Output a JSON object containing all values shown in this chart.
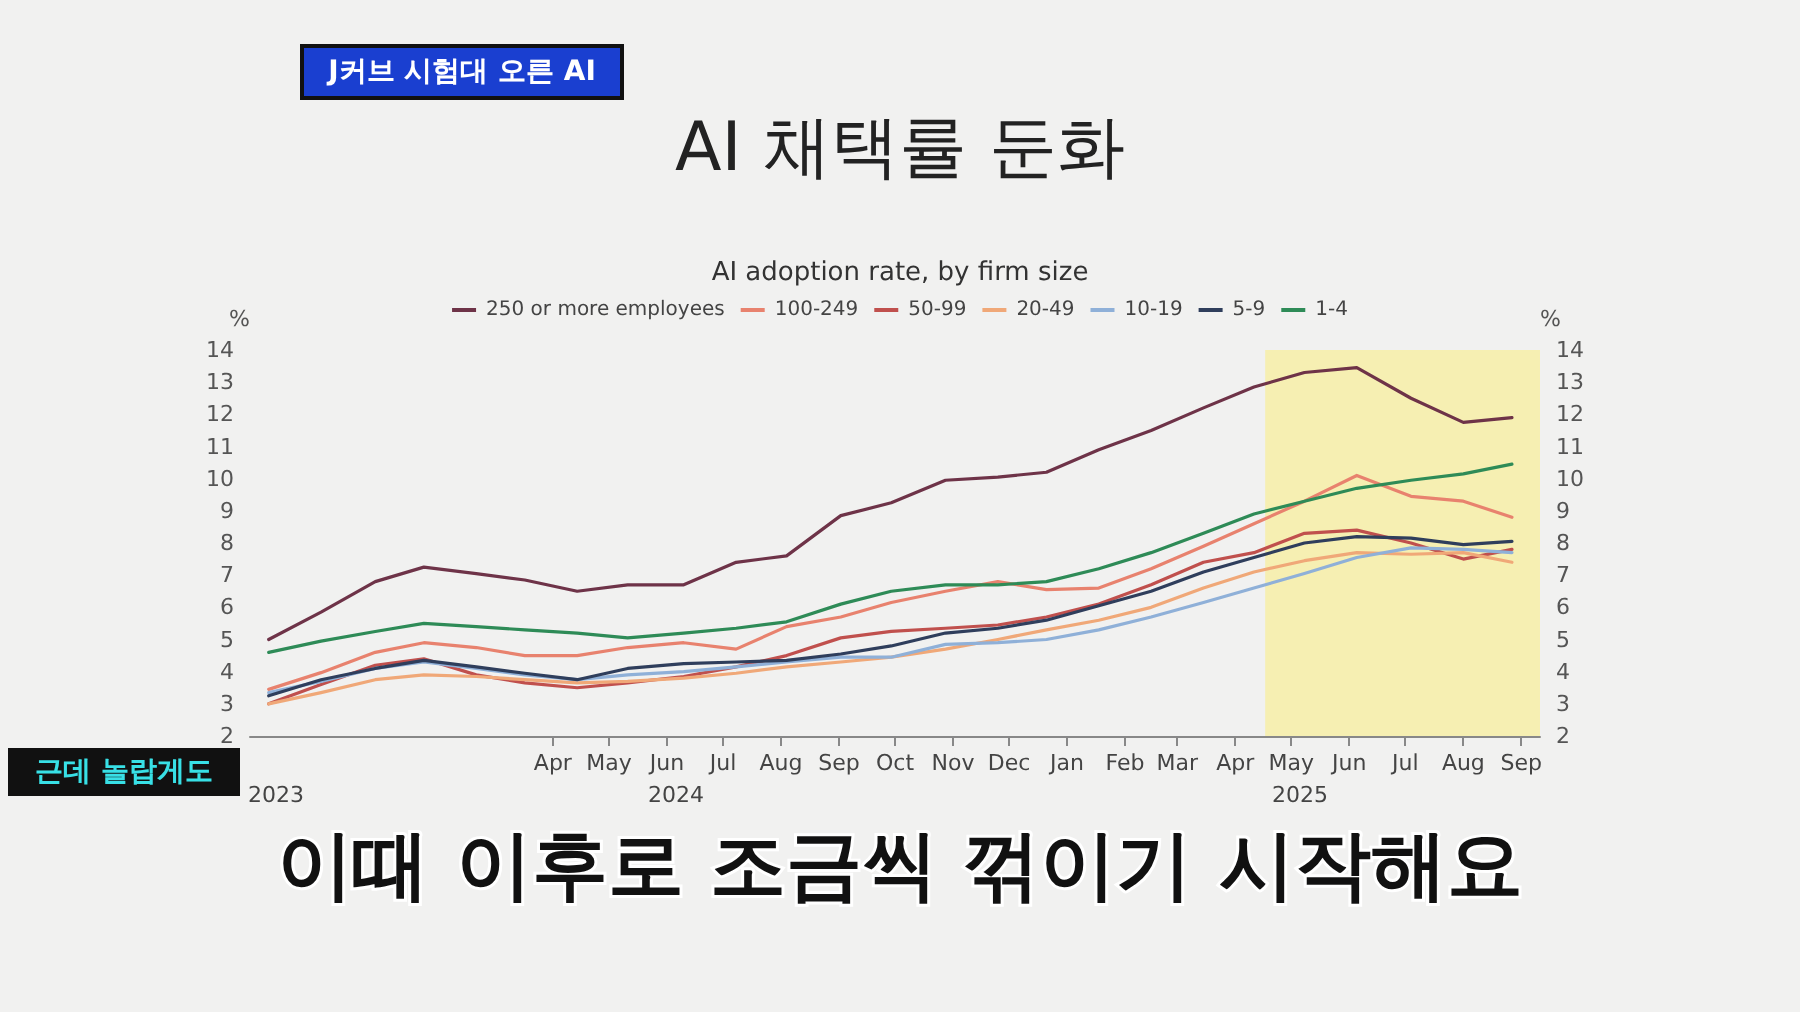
{
  "chart_data": {
    "type": "line",
    "title": "AI 채택률 둔화",
    "subtitle": "AI adoption rate, by firm size",
    "ylabel": "%",
    "y2label": "%",
    "annotations": [
      "J커브 시험대 오른 AI",
      "근데 놀랍게도",
      "이때 이후로 조금씩 꺾이기 시작해요",
      "2023",
      "2024",
      "2025"
    ],
    "x": [
      "2023-11-15",
      "2023-12-13",
      "2024-01-11",
      "2024-02-06",
      "2024-03-05",
      "2024-03-31",
      "2024-04-28",
      "2024-05-25",
      "2024-06-24",
      "2024-07-22",
      "2024-08-18",
      "2024-09-16",
      "2024-10-13",
      "2024-11-11",
      "2024-12-09",
      "2025-01-04",
      "2025-02-01",
      "2025-03-01",
      "2025-03-29",
      "2025-04-25",
      "2025-05-22",
      "2025-06-19",
      "2025-07-18",
      "2025-08-15",
      "2025-09-10"
    ],
    "series": [
      {
        "name": "250 or more employees",
        "color": "#6e3348",
        "values": [
          5.0,
          5.85,
          6.8,
          7.25,
          7.05,
          6.85,
          6.5,
          6.7,
          6.7,
          7.4,
          7.6,
          8.85,
          9.25,
          9.95,
          10.05,
          10.2,
          10.9,
          11.5,
          12.2,
          12.85,
          13.3,
          13.45,
          12.5,
          11.75,
          11.9
        ]
      },
      {
        "name": "100-249",
        "color": "#e8826e",
        "values": [
          3.45,
          3.97,
          4.6,
          4.9,
          4.75,
          4.5,
          4.5,
          4.75,
          4.9,
          4.7,
          5.4,
          5.7,
          6.15,
          6.5,
          6.8,
          6.55,
          6.6,
          7.2,
          7.9,
          8.6,
          9.3,
          10.1,
          9.45,
          9.3,
          8.8
        ]
      },
      {
        "name": "50-99",
        "color": "#c0504d",
        "values": [
          3.0,
          3.6,
          4.2,
          4.4,
          3.9,
          3.65,
          3.5,
          3.65,
          3.85,
          4.15,
          4.5,
          5.05,
          5.25,
          5.35,
          5.45,
          5.7,
          6.1,
          6.7,
          7.4,
          7.7,
          8.3,
          8.4,
          8.0,
          7.5,
          7.8
        ]
      },
      {
        "name": "20-49",
        "color": "#f0a878",
        "values": [
          3.0,
          3.35,
          3.75,
          3.9,
          3.85,
          3.75,
          3.65,
          3.7,
          3.8,
          3.95,
          4.15,
          4.3,
          4.45,
          4.7,
          5.0,
          5.3,
          5.6,
          6.0,
          6.6,
          7.1,
          7.45,
          7.7,
          7.65,
          7.7,
          7.4
        ]
      },
      {
        "name": "10-19",
        "color": "#8fb0d8",
        "values": [
          3.35,
          3.7,
          4.1,
          4.3,
          4.1,
          3.9,
          3.75,
          3.9,
          4.0,
          4.15,
          4.3,
          4.45,
          4.45,
          4.85,
          4.9,
          5.0,
          5.3,
          5.7,
          6.15,
          6.6,
          7.05,
          7.55,
          7.85,
          7.8,
          7.7
        ]
      },
      {
        "name": "5-9",
        "color": "#2f3e5c",
        "values": [
          3.25,
          3.75,
          4.1,
          4.35,
          4.15,
          3.95,
          3.75,
          4.1,
          4.25,
          4.3,
          4.35,
          4.55,
          4.8,
          5.2,
          5.35,
          5.6,
          6.05,
          6.5,
          7.1,
          7.55,
          8.0,
          8.2,
          8.15,
          7.95,
          8.05
        ]
      },
      {
        "name": "1-4",
        "color": "#2e8b57",
        "values": [
          4.6,
          4.95,
          5.25,
          5.5,
          5.4,
          5.3,
          5.2,
          5.05,
          5.2,
          5.35,
          5.55,
          6.1,
          6.5,
          6.7,
          6.7,
          6.8,
          7.2,
          7.7,
          8.3,
          8.9,
          9.3,
          9.7,
          9.95,
          10.15,
          10.45
        ]
      }
    ],
    "xlim": [
      "2023-11-05",
      "2025-09-25"
    ],
    "xticks": [
      {
        "value": "2024-04-15",
        "label": "Apr"
      },
      {
        "value": "2024-05-15",
        "label": "May"
      },
      {
        "value": "2024-06-15",
        "label": "Jun"
      },
      {
        "value": "2024-07-15",
        "label": "Jul"
      },
      {
        "value": "2024-08-15",
        "label": "Aug"
      },
      {
        "value": "2024-09-15",
        "label": "Sep"
      },
      {
        "value": "2024-10-15",
        "label": "Oct"
      },
      {
        "value": "2024-11-15",
        "label": "Nov"
      },
      {
        "value": "2024-12-15",
        "label": "Dec"
      },
      {
        "value": "2025-01-15",
        "label": "Jan"
      },
      {
        "value": "2025-02-15",
        "label": "Feb"
      },
      {
        "value": "2025-03-15",
        "label": "Mar"
      },
      {
        "value": "2025-04-15",
        "label": "Apr"
      },
      {
        "value": "2025-05-15",
        "label": "May"
      },
      {
        "value": "2025-06-15",
        "label": "Jun"
      },
      {
        "value": "2025-07-15",
        "label": "Jul"
      },
      {
        "value": "2025-08-15",
        "label": "Aug"
      },
      {
        "value": "2025-09-15",
        "label": "Sep"
      }
    ],
    "ylim": [
      2,
      14
    ],
    "yticks": [
      2,
      3,
      4,
      5,
      6,
      7,
      8,
      9,
      10,
      11,
      12,
      13,
      14
    ],
    "y2lim": [
      2,
      14
    ],
    "y2ticks": [
      2,
      3,
      4,
      5,
      6,
      7,
      8,
      9,
      10,
      11,
      12,
      13,
      14
    ],
    "bands": [
      {
        "axis": "x",
        "from": "2025-05-01",
        "to": "2025-09-25",
        "color": "#f6efb2"
      }
    ],
    "grid": false,
    "legend": "top",
    "marker": "none",
    "line_style": "solid"
  }
}
